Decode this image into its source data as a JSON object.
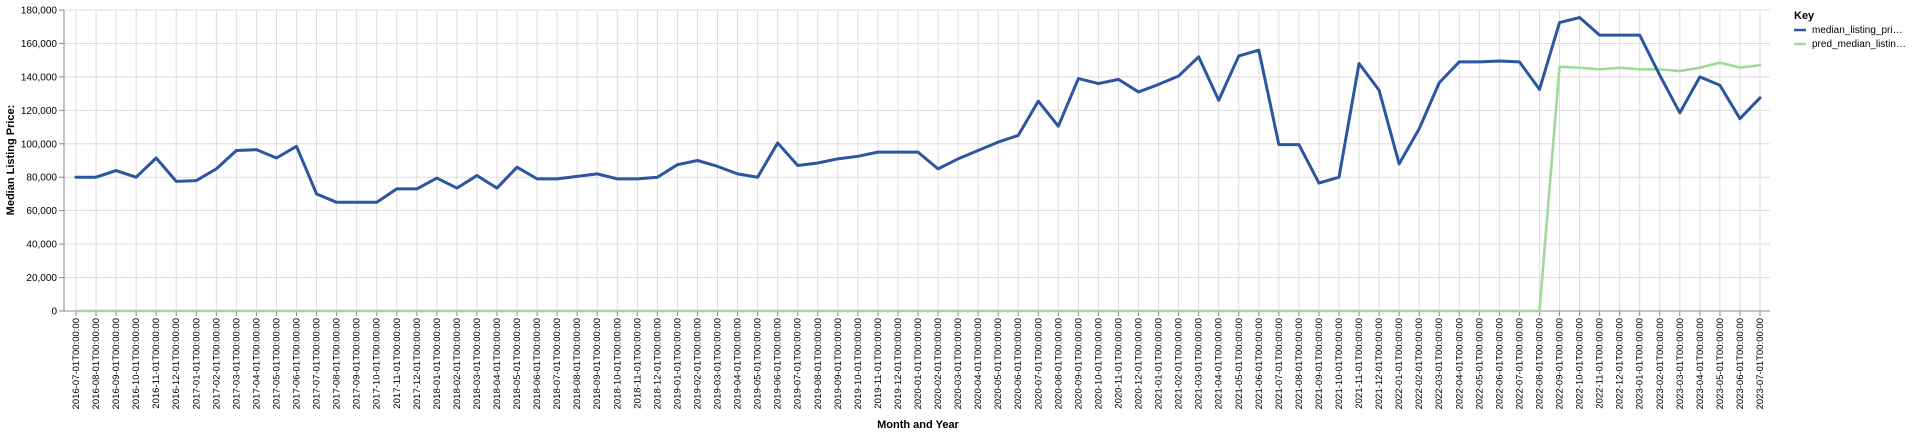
{
  "chart_data": {
    "type": "line",
    "xlabel": "Month and Year",
    "ylabel": "Median Listing Price:",
    "ylim": [
      0,
      180000
    ],
    "yticks": [
      0,
      20000,
      40000,
      60000,
      80000,
      100000,
      120000,
      140000,
      160000,
      180000
    ],
    "ytick_labels": [
      "0",
      "20,000",
      "40,000",
      "60,000",
      "80,000",
      "100,000",
      "120,000",
      "140,000",
      "160,000",
      "180,000"
    ],
    "grid": true,
    "legend": {
      "title": "Key",
      "placement": "top-right",
      "entries": [
        "median_listing_pri…",
        "pred_median_listin…"
      ]
    },
    "x": [
      "2016-07-01T00:00:00",
      "2016-08-01T00:00:00",
      "2016-09-01T00:00:00",
      "2016-10-01T00:00:00",
      "2016-11-01T00:00:00",
      "2016-12-01T00:00:00",
      "2017-01-01T00:00:00",
      "2017-02-01T00:00:00",
      "2017-03-01T00:00:00",
      "2017-04-01T00:00:00",
      "2017-05-01T00:00:00",
      "2017-06-01T00:00:00",
      "2017-07-01T00:00:00",
      "2017-08-01T00:00:00",
      "2017-09-01T00:00:00",
      "2017-10-01T00:00:00",
      "2017-11-01T00:00:00",
      "2017-12-01T00:00:00",
      "2018-01-01T00:00:00",
      "2018-02-01T00:00:00",
      "2018-03-01T00:00:00",
      "2018-04-01T00:00:00",
      "2018-05-01T00:00:00",
      "2018-06-01T00:00:00",
      "2018-07-01T00:00:00",
      "2018-08-01T00:00:00",
      "2018-09-01T00:00:00",
      "2018-10-01T00:00:00",
      "2018-11-01T00:00:00",
      "2018-12-01T00:00:00",
      "2019-01-01T00:00:00",
      "2019-02-01T00:00:00",
      "2019-03-01T00:00:00",
      "2019-04-01T00:00:00",
      "2019-05-01T00:00:00",
      "2019-06-01T00:00:00",
      "2019-07-01T00:00:00",
      "2019-08-01T00:00:00",
      "2019-09-01T00:00:00",
      "2019-10-01T00:00:00",
      "2019-11-01T00:00:00",
      "2019-12-01T00:00:00",
      "2020-01-01T00:00:00",
      "2020-02-01T00:00:00",
      "2020-03-01T00:00:00",
      "2020-04-01T00:00:00",
      "2020-05-01T00:00:00",
      "2020-06-01T00:00:00",
      "2020-07-01T00:00:00",
      "2020-08-01T00:00:00",
      "2020-09-01T00:00:00",
      "2020-10-01T00:00:00",
      "2020-11-01T00:00:00",
      "2020-12-01T00:00:00",
      "2021-01-01T00:00:00",
      "2021-02-01T00:00:00",
      "2021-03-01T00:00:00",
      "2021-04-01T00:00:00",
      "2021-05-01T00:00:00",
      "2021-06-01T00:00:00",
      "2021-07-01T00:00:00",
      "2021-08-01T00:00:00",
      "2021-09-01T00:00:00",
      "2021-10-01T00:00:00",
      "2021-11-01T00:00:00",
      "2021-12-01T00:00:00",
      "2022-01-01T00:00:00",
      "2022-02-01T00:00:00",
      "2022-03-01T00:00:00",
      "2022-04-01T00:00:00",
      "2022-05-01T00:00:00",
      "2022-06-01T00:00:00",
      "2022-07-01T00:00:00",
      "2022-08-01T00:00:00",
      "2022-09-01T00:00:00",
      "2022-10-01T00:00:00",
      "2022-11-01T00:00:00",
      "2022-12-01T00:00:00",
      "2023-01-01T00:00:00",
      "2023-02-01T00:00:00",
      "2023-03-01T00:00:00",
      "2023-04-01T00:00:00",
      "2023-05-01T00:00:00",
      "2023-06-01T00:00:00",
      "2023-07-01T00:00:00"
    ],
    "series": [
      {
        "name": "median_listing_pri…",
        "color": "#2b56a0",
        "values": [
          80000,
          80000,
          84000,
          80000,
          91500,
          77500,
          78000,
          85000,
          96000,
          96500,
          91500,
          98500,
          70000,
          65000,
          65000,
          65000,
          73000,
          73000,
          79500,
          73500,
          81000,
          73500,
          86000,
          79000,
          79000,
          80500,
          82000,
          79000,
          79000,
          80000,
          87500,
          90000,
          86500,
          82000,
          80000,
          100500,
          87000,
          88500,
          91000,
          92500,
          95000,
          95000,
          95000,
          85000,
          91000,
          96000,
          101000,
          105000,
          125500,
          110500,
          139000,
          136000,
          138500,
          131000,
          135500,
          140500,
          152000,
          126000,
          152500,
          156000,
          99500,
          99500,
          76500,
          80000,
          148000,
          132000,
          88000,
          109000,
          136500,
          149000,
          149000,
          149500,
          149000,
          132500,
          172500,
          175500,
          165000,
          165000,
          165000,
          141000,
          118500,
          140000,
          135000,
          115000,
          127500
        ]
      },
      {
        "name": "pred_median_listin…",
        "color": "#a1d99b",
        "values": [
          0,
          0,
          0,
          0,
          0,
          0,
          0,
          0,
          0,
          0,
          0,
          0,
          0,
          0,
          0,
          0,
          0,
          0,
          0,
          0,
          0,
          0,
          0,
          0,
          0,
          0,
          0,
          0,
          0,
          0,
          0,
          0,
          0,
          0,
          0,
          0,
          0,
          0,
          0,
          0,
          0,
          0,
          0,
          0,
          0,
          0,
          0,
          0,
          0,
          0,
          0,
          0,
          0,
          0,
          0,
          0,
          0,
          0,
          0,
          0,
          0,
          0,
          0,
          0,
          0,
          0,
          0,
          0,
          0,
          0,
          0,
          0,
          0,
          0,
          146000,
          145500,
          144500,
          145500,
          144500,
          144500,
          143500,
          145500,
          148500,
          145500,
          147000
        ]
      }
    ]
  }
}
